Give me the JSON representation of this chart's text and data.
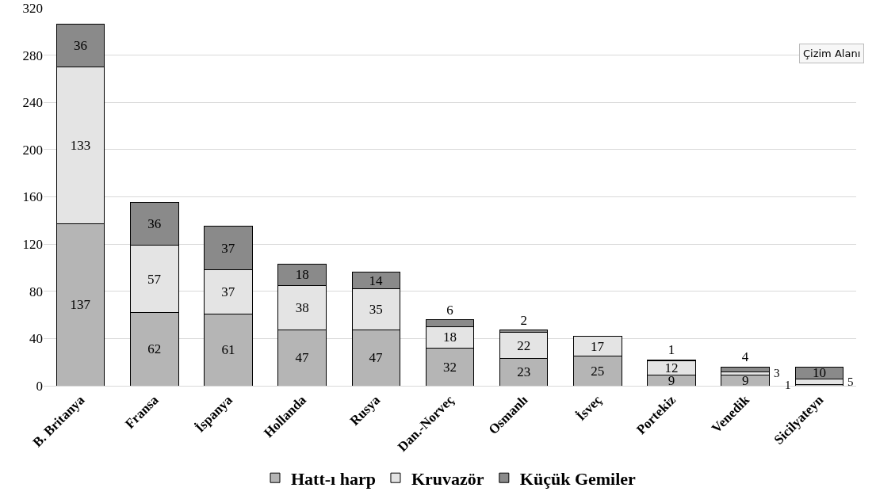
{
  "chart_data": {
    "type": "bar",
    "stacked": true,
    "categories": [
      "B. Britanya",
      "Fransa",
      "İspanya",
      "Hollanda",
      "Rusya",
      "Dan.-Norveç",
      "Osmanlı",
      "İsveç",
      "Portekiz",
      "Venedik",
      "Sicilyateyn"
    ],
    "series": [
      {
        "name": "Hatt-ı harp",
        "color": "#b5b5b5",
        "values": [
          137,
          62,
          61,
          47,
          47,
          32,
          23,
          25,
          9,
          9,
          1
        ]
      },
      {
        "name": "Kruvazör",
        "color": "#e4e4e4",
        "values": [
          133,
          57,
          37,
          38,
          35,
          18,
          22,
          17,
          12,
          3,
          5
        ]
      },
      {
        "name": "Küçük Gemiler",
        "color": "#8a8a8a",
        "values": [
          36,
          36,
          37,
          18,
          14,
          6,
          2,
          null,
          1,
          4,
          10
        ]
      }
    ],
    "ylim": [
      0,
      320
    ],
    "yticks": [
      0,
      40,
      80,
      120,
      160,
      200,
      240,
      280,
      320
    ],
    "grid": "y",
    "legend": "bottom",
    "data_labels": true,
    "annotations": [
      "Çizim Alanı"
    ]
  }
}
